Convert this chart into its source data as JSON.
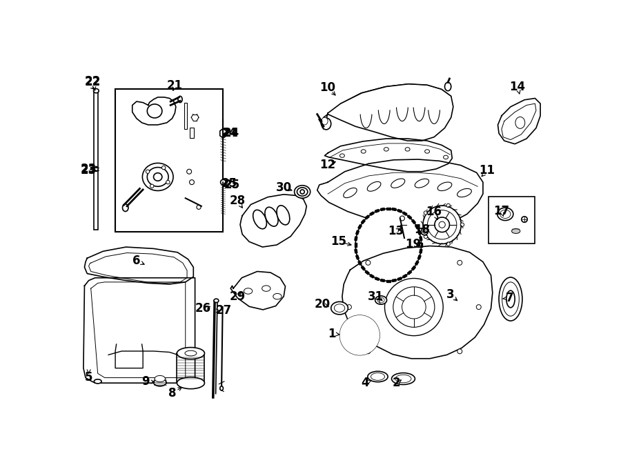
{
  "bg_color": "#ffffff",
  "line_color": "#000000",
  "lw": 1.2
}
